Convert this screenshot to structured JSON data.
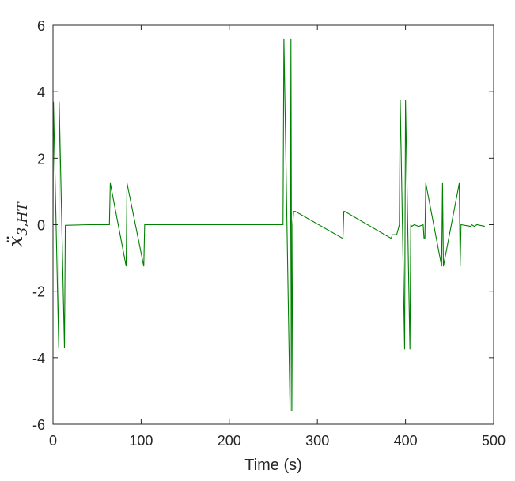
{
  "chart_data": {
    "type": "line",
    "xlabel": "Time (s)",
    "ylabel": "ẍ",
    "ylabel_subscript": "3,HT",
    "xlim": [
      0,
      500
    ],
    "ylim": [
      -6,
      6
    ],
    "xticks": [
      0,
      100,
      200,
      300,
      400,
      500
    ],
    "yticks": [
      -6,
      -4,
      -2,
      0,
      2,
      4,
      6
    ],
    "xtick_labels": [
      "0",
      "100",
      "200",
      "300",
      "400",
      "500"
    ],
    "ytick_labels": [
      "-6",
      "-4",
      "-2",
      "0",
      "2",
      "4",
      "6"
    ],
    "grid": false,
    "box": true,
    "series": [
      {
        "color": "#008000",
        "x": [
          0,
          0.5,
          6.5,
          7,
          13,
          14,
          40,
          64,
          65,
          83,
          84,
          103,
          104,
          120,
          200,
          259,
          261,
          262,
          269,
          270,
          271,
          272,
          273,
          274,
          275,
          328,
          329,
          330,
          331,
          383,
          384,
          385,
          386,
          390,
          393,
          394,
          399,
          400,
          405,
          406,
          407,
          410,
          415,
          420,
          421,
          422,
          423,
          441,
          442,
          443,
          461,
          462,
          463,
          474,
          475,
          478,
          481,
          490
        ],
        "y": [
          0,
          3.7,
          -3.7,
          3.7,
          -3.7,
          -0.02,
          0,
          0,
          1.25,
          -1.25,
          1.25,
          -1.25,
          0,
          0,
          0,
          0,
          0,
          5.6,
          -5.6,
          5.6,
          -5.6,
          0,
          0.4,
          0.4,
          0.4,
          -0.4,
          -0.4,
          0.4,
          0.4,
          -0.4,
          -0.4,
          -0.3,
          -0.3,
          -0.3,
          0,
          3.75,
          -3.75,
          3.75,
          -3.75,
          0,
          -0.05,
          0,
          -0.05,
          0,
          -0.4,
          -0.4,
          1.25,
          -1.25,
          1.25,
          -1.25,
          1.25,
          -1.25,
          0,
          -0.05,
          0,
          -0.05,
          0,
          -0.05
        ]
      }
    ]
  }
}
